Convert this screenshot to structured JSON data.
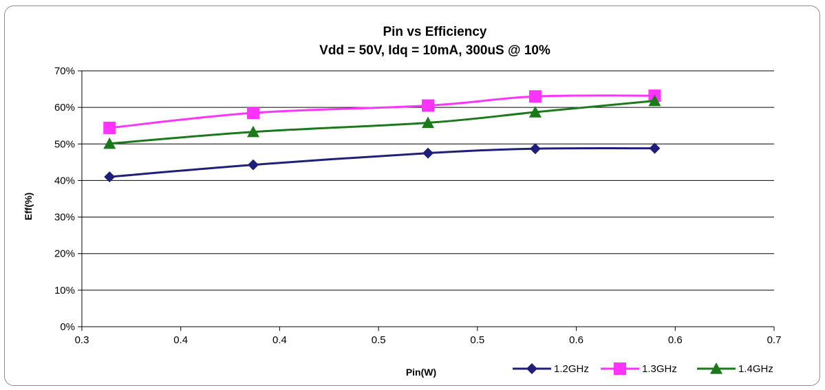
{
  "chart_data": {
    "type": "line",
    "title": "Pin vs Efficiency",
    "subtitle": "Vdd = 50V, Idq = 10mA, 300uS @ 10%",
    "xlabel": "Pin(W)",
    "ylabel": "Eff(%)",
    "xlim": [
      0.3,
      0.7
    ],
    "ylim": [
      0,
      0.7
    ],
    "x_tick_labels": [
      "0.3",
      "0.4",
      "0.4",
      "0.5",
      "0.5",
      "0.6",
      "0.6",
      "0.7"
    ],
    "y_tick_labels": [
      "0%",
      "10%",
      "20%",
      "30%",
      "40%",
      "50%",
      "60%",
      "70%"
    ],
    "grid": "horizontal",
    "legend_position": "bottom-right",
    "x": [
      0.316,
      0.399,
      0.5,
      0.562,
      0.631
    ],
    "series": [
      {
        "name": "1.2GHz",
        "values": [
          0.41,
          0.443,
          0.475,
          0.487,
          0.488
        ],
        "color": "#1f1f7a",
        "marker": "diamond"
      },
      {
        "name": "1.3GHz",
        "values": [
          0.544,
          0.585,
          0.605,
          0.63,
          0.632
        ],
        "color": "#ff33ff",
        "marker": "square"
      },
      {
        "name": "1.4GHz",
        "values": [
          0.501,
          0.533,
          0.558,
          0.587,
          0.618
        ],
        "color": "#1a7a1a",
        "marker": "triangle"
      }
    ]
  }
}
